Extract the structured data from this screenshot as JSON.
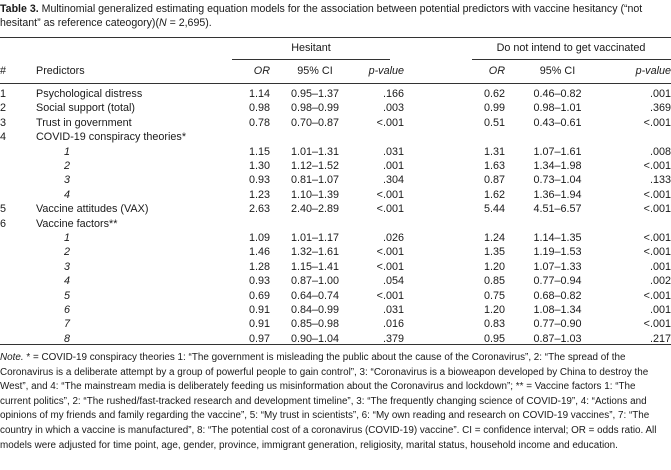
{
  "caption": {
    "label": "Table 3.",
    "text": " Multinomial generalized estimating equation models for the association between potential predictors with vaccine hesitancy (“not hesitant” as reference cateogory)(",
    "n_label": "N",
    "n_value": " = 2,695)."
  },
  "groups": {
    "hesitant": "Hesitant",
    "not_intend": "Do not intend to get vaccinated"
  },
  "columns": {
    "num": "#",
    "predictor": "Predictors",
    "or": "OR",
    "ci": "95% CI",
    "p": "p-value",
    "or2": "OR",
    "ci2": "95% CI",
    "p2": "p-value"
  },
  "rows": [
    {
      "num": "1",
      "label": "Psychological distress",
      "sub": false,
      "or": "1.14",
      "ci": "0.95–1.37",
      "p": ".166",
      "or2": "0.62",
      "ci2": "0.46–0.82",
      "p2": ".001"
    },
    {
      "num": "2",
      "label": "Social support (total)",
      "sub": false,
      "or": "0.98",
      "ci": "0.98–0.99",
      "p": ".003",
      "or2": "0.99",
      "ci2": "0.98–1.01",
      "p2": ".369"
    },
    {
      "num": "3",
      "label": "Trust in government",
      "sub": false,
      "or": "0.78",
      "ci": "0.70–0.87",
      "p": "<.001",
      "or2": "0.51",
      "ci2": "0.43–0.61",
      "p2": "<.001"
    },
    {
      "num": "4",
      "label": "COVID-19 conspiracy theories*",
      "sub": false,
      "or": "",
      "ci": "",
      "p": "",
      "or2": "",
      "ci2": "",
      "p2": ""
    },
    {
      "num": "",
      "label": "1",
      "sub": true,
      "or": "1.15",
      "ci": "1.01–1.31",
      "p": ".031",
      "or2": "1.31",
      "ci2": "1.07–1.61",
      "p2": ".008"
    },
    {
      "num": "",
      "label": "2",
      "sub": true,
      "or": "1.30",
      "ci": "1.12–1.52",
      "p": ".001",
      "or2": "1.63",
      "ci2": "1.34–1.98",
      "p2": "<.001"
    },
    {
      "num": "",
      "label": "3",
      "sub": true,
      "or": "0.93",
      "ci": "0.81–1.07",
      "p": ".304",
      "or2": "0.87",
      "ci2": "0.73–1.04",
      "p2": ".133"
    },
    {
      "num": "",
      "label": "4",
      "sub": true,
      "or": "1.23",
      "ci": "1.10–1.39",
      "p": "<.001",
      "or2": "1.62",
      "ci2": "1.36–1.94",
      "p2": "<.001"
    },
    {
      "num": "5",
      "label": "Vaccine attitudes (VAX)",
      "sub": false,
      "or": "2.63",
      "ci": "2.40–2.89",
      "p": "<.001",
      "or2": "5.44",
      "ci2": "4.51–6.57",
      "p2": "<.001"
    },
    {
      "num": "6",
      "label": "Vaccine factors**",
      "sub": false,
      "or": "",
      "ci": "",
      "p": "",
      "or2": "",
      "ci2": "",
      "p2": ""
    },
    {
      "num": "",
      "label": "1",
      "sub": true,
      "or": "1.09",
      "ci": "1.01–1.17",
      "p": ".026",
      "or2": "1.24",
      "ci2": "1.14–1.35",
      "p2": "<.001"
    },
    {
      "num": "",
      "label": "2",
      "sub": true,
      "or": "1.46",
      "ci": "1.32–1.61",
      "p": "<.001",
      "or2": "1.35",
      "ci2": "1.19–1.53",
      "p2": "<.001"
    },
    {
      "num": "",
      "label": "3",
      "sub": true,
      "or": "1.28",
      "ci": "1.15–1.41",
      "p": "<.001",
      "or2": "1.20",
      "ci2": "1.07–1.33",
      "p2": ".001"
    },
    {
      "num": "",
      "label": "4",
      "sub": true,
      "or": "0.93",
      "ci": "0.87–1.00",
      "p": ".054",
      "or2": "0.85",
      "ci2": "0.77–0.94",
      "p2": ".002"
    },
    {
      "num": "",
      "label": "5",
      "sub": true,
      "or": "0.69",
      "ci": "0.64–0.74",
      "p": "<.001",
      "or2": "0.75",
      "ci2": "0.68–0.82",
      "p2": "<.001"
    },
    {
      "num": "",
      "label": "6",
      "sub": true,
      "or": "0.91",
      "ci": "0.84–0.99",
      "p": ".031",
      "or2": "1.20",
      "ci2": "1.08–1.34",
      "p2": ".001"
    },
    {
      "num": "",
      "label": "7",
      "sub": true,
      "or": "0.91",
      "ci": "0.85–0.98",
      "p": ".016",
      "or2": "0.83",
      "ci2": "0.77–0.90",
      "p2": "<.001"
    },
    {
      "num": "",
      "label": "8",
      "sub": true,
      "or": "0.97",
      "ci": "0.90–1.04",
      "p": ".379",
      "or2": "0.95",
      "ci2": "0.87–1.03",
      "p2": ".217"
    }
  ],
  "note": {
    "lead": "Note.",
    "text": " * = COVID-19 conspiracy theories 1: “The government is misleading the public about the cause of the Coronavirus”, 2: “The spread of the Coronavirus is a deliberate attempt by a group of powerful people to gain control”, 3: “Coronavirus is a bioweapon developed by China to destroy the West”, and 4: “The mainstream media is deliberately feeding us misinformation about the Coronavirus and lockdown”; ** = Vaccine factors 1: “The current politics”, 2: “The rushed/fast-tracked research and development timeline”, 3: “The frequently changing science of COVID-19”, 4: “Actions and opinions of my friends and family regarding the vaccine”, 5: “My trust in scientists”, 6: “My own reading and research on COVID-19 vaccines”, 7: “The country in which a vaccine is manufactured”, 8: “The potential cost of a coronavirus (COVID-19) vaccine”. CI = confidence interval; OR = odds ratio. All models were adjusted for time point, age, gender, province, immigrant generation, religiosity, marital status, household income and education."
  }
}
